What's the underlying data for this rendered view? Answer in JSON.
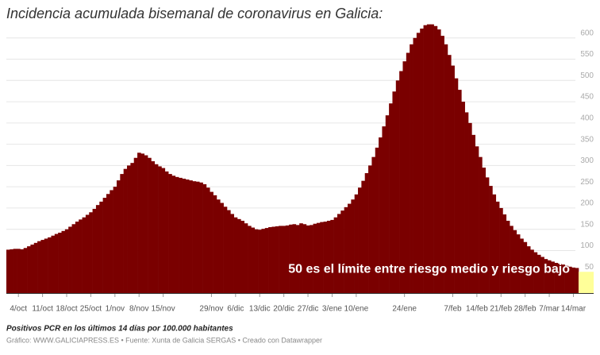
{
  "chart_data": {
    "type": "bar",
    "title": "Incidencia acumulada bisemanal de coronavirus en Galicia:",
    "annotation": "50 es el límite entre riesgo medio y riesgo bajo",
    "note": "Positivos PCR en los últimos 14 días por 100.000 habitantes",
    "credit": "Gráfico: WWW.GALICIAPRESS.ES • Fuente: Xunta de Galicia SERGAS • Creado con Datawrapper",
    "color": "#7a0000",
    "threshold": {
      "value": 50,
      "color": "#ffff99"
    },
    "grid": true,
    "ylim": [
      0,
      650
    ],
    "yticks": [
      50,
      100,
      150,
      200,
      250,
      300,
      350,
      400,
      450,
      500,
      550,
      600
    ],
    "categories": [
      null,
      null,
      null,
      "4/oct",
      null,
      null,
      null,
      null,
      null,
      null,
      "11/oct",
      null,
      null,
      null,
      null,
      null,
      null,
      "18/oct",
      null,
      null,
      null,
      null,
      null,
      null,
      "25/oct",
      null,
      null,
      null,
      null,
      null,
      null,
      "1/nov",
      null,
      null,
      null,
      null,
      null,
      null,
      "8/nov",
      null,
      null,
      null,
      null,
      null,
      null,
      "15/nov",
      null,
      null,
      null,
      null,
      null,
      null,
      null,
      null,
      null,
      null,
      null,
      null,
      null,
      "29/nov",
      null,
      null,
      null,
      null,
      null,
      null,
      "6/dic",
      null,
      null,
      null,
      null,
      null,
      null,
      "13/dic",
      null,
      null,
      null,
      null,
      null,
      null,
      "20/dic",
      null,
      null,
      null,
      null,
      null,
      null,
      "27/dic",
      null,
      null,
      null,
      null,
      null,
      null,
      "3/ene",
      null,
      null,
      null,
      null,
      null,
      null,
      "10/ene",
      null,
      null,
      null,
      null,
      null,
      null,
      null,
      null,
      null,
      null,
      null,
      null,
      null,
      "24/ene",
      null,
      null,
      null,
      null,
      null,
      null,
      null,
      null,
      null,
      null,
      null,
      null,
      null,
      "7/feb",
      null,
      null,
      null,
      null,
      null,
      null,
      "14/feb",
      null,
      null,
      null,
      null,
      null,
      null,
      "21/feb",
      null,
      null,
      null,
      null,
      null,
      null,
      "28/feb",
      null,
      null,
      null,
      null,
      null,
      null,
      "7/mar",
      null,
      null,
      null,
      null,
      null,
      null,
      "14/mar",
      null
    ],
    "values": [
      102,
      103,
      104,
      104,
      103,
      106,
      110,
      114,
      118,
      122,
      125,
      128,
      131,
      135,
      139,
      142,
      146,
      150,
      156,
      162,
      168,
      173,
      178,
      184,
      190,
      198,
      207,
      215,
      224,
      233,
      242,
      250,
      265,
      280,
      292,
      300,
      306,
      318,
      330,
      328,
      324,
      318,
      310,
      303,
      298,
      294,
      286,
      280,
      276,
      273,
      271,
      269,
      267,
      265,
      263,
      262,
      260,
      256,
      248,
      238,
      230,
      220,
      212,
      203,
      195,
      186,
      178,
      174,
      170,
      164,
      158,
      154,
      150,
      149,
      151,
      153,
      155,
      156,
      157,
      158,
      158,
      159,
      161,
      162,
      160,
      164,
      162,
      159,
      160,
      163,
      165,
      167,
      168,
      170,
      172,
      178,
      186,
      194,
      202,
      210,
      220,
      232,
      248,
      264,
      282,
      300,
      320,
      342,
      366,
      392,
      418,
      446,
      474,
      500,
      522,
      545,
      565,
      585,
      600,
      612,
      622,
      630,
      632,
      632,
      628,
      620,
      605,
      585,
      560,
      535,
      505,
      478,
      450,
      425,
      400,
      372,
      345,
      320,
      295,
      272,
      252,
      232,
      215,
      200,
      185,
      170,
      158,
      148,
      138,
      128,
      120,
      110,
      102,
      96,
      90,
      85,
      80,
      77,
      74,
      71,
      69,
      67,
      64,
      62,
      60,
      59
    ]
  }
}
